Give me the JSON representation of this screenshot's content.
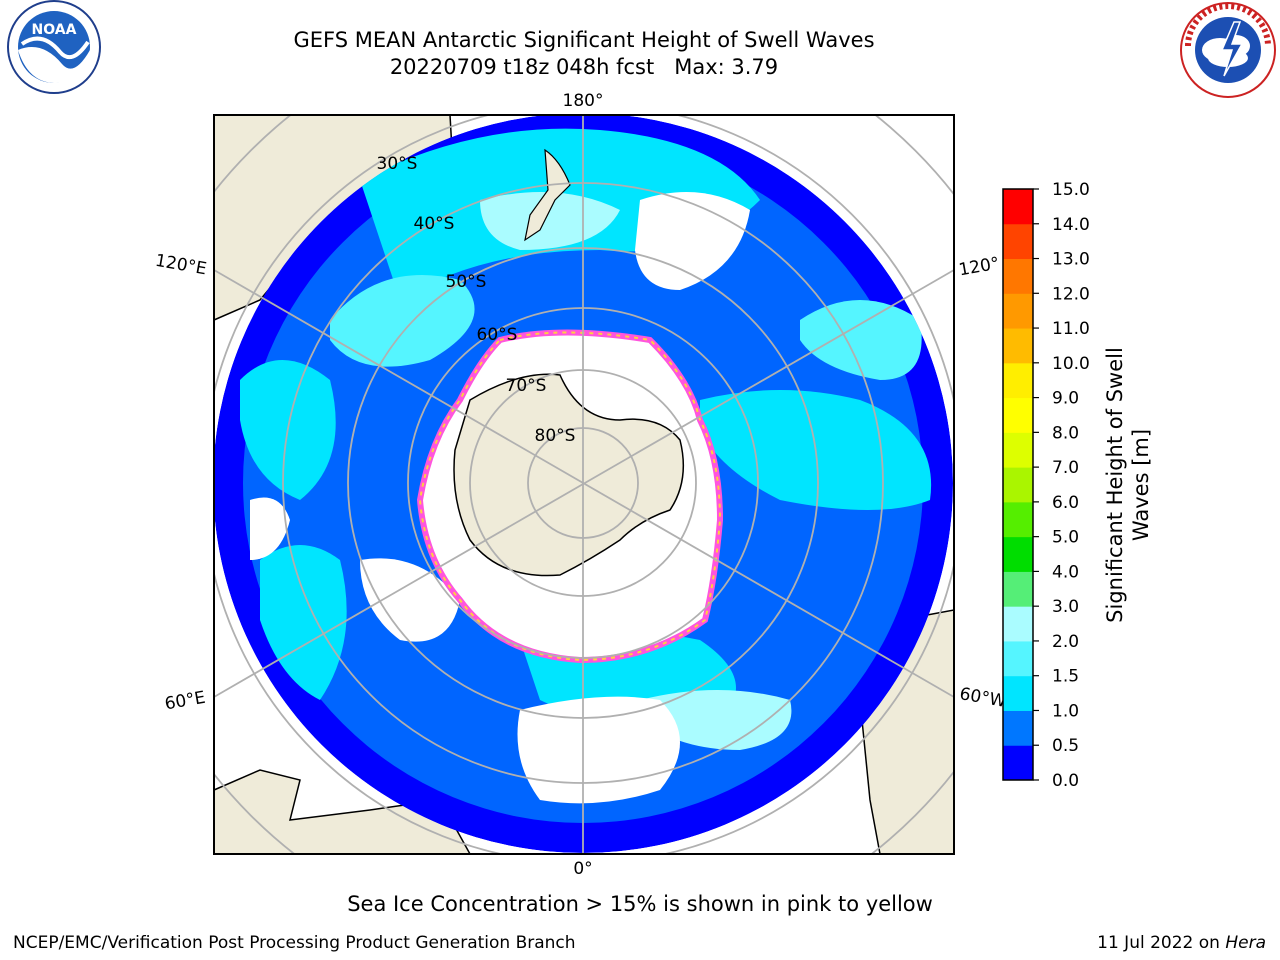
{
  "header": {
    "title_line1": "GEFS MEAN Antarctic Significant Height of Swell Waves",
    "title_line2": "20220709 t18z 048h fcst   Max: 3.79"
  },
  "logos": {
    "left": "noaa-logo",
    "right": "national-weather-service-logo"
  },
  "map": {
    "projection": "south-polar-stereographic",
    "longitude_labels": {
      "top": "180°",
      "bottom": "0°",
      "upper_left": "120°E",
      "lower_left": "60°E",
      "upper_right": "120°",
      "lower_right": "60°W"
    },
    "latitude_labels": [
      "30°S",
      "40°S",
      "50°S",
      "60°S",
      "70°S",
      "80°S"
    ],
    "colors": {
      "land": "#efebd9",
      "no_data": "#ffffff",
      "grid": "#b0b0b0",
      "ice_edge_pink": "#ff55dd",
      "ice_edge_yellow": "#ffd040"
    }
  },
  "colorbar": {
    "title": "Significant Height of Swell\nWaves [m]",
    "ticks": [
      "0.0",
      "0.5",
      "1.0",
      "1.5",
      "2.0",
      "3.0",
      "4.0",
      "5.0",
      "6.0",
      "7.0",
      "8.0",
      "9.0",
      "10.0",
      "11.0",
      "12.0",
      "13.0",
      "14.0",
      "15.0"
    ],
    "colors": [
      "#0000ff",
      "#0077ff",
      "#00e5ff",
      "#55f5ff",
      "#aafcff",
      "#55ee77",
      "#00dd00",
      "#55ee00",
      "#aaf500",
      "#ddff00",
      "#ffff00",
      "#ffee00",
      "#ffbb00",
      "#ff9900",
      "#ff7700",
      "#ff4400",
      "#ff0000"
    ]
  },
  "subtitle": "Sea Ice Concentration > 15% is shown in pink to yellow",
  "footer": {
    "left": "NCEP/EMC/Verification Post Processing Product Generation Branch",
    "right_prefix": "11 Jul 2022 on ",
    "right_machine": "Hera"
  }
}
